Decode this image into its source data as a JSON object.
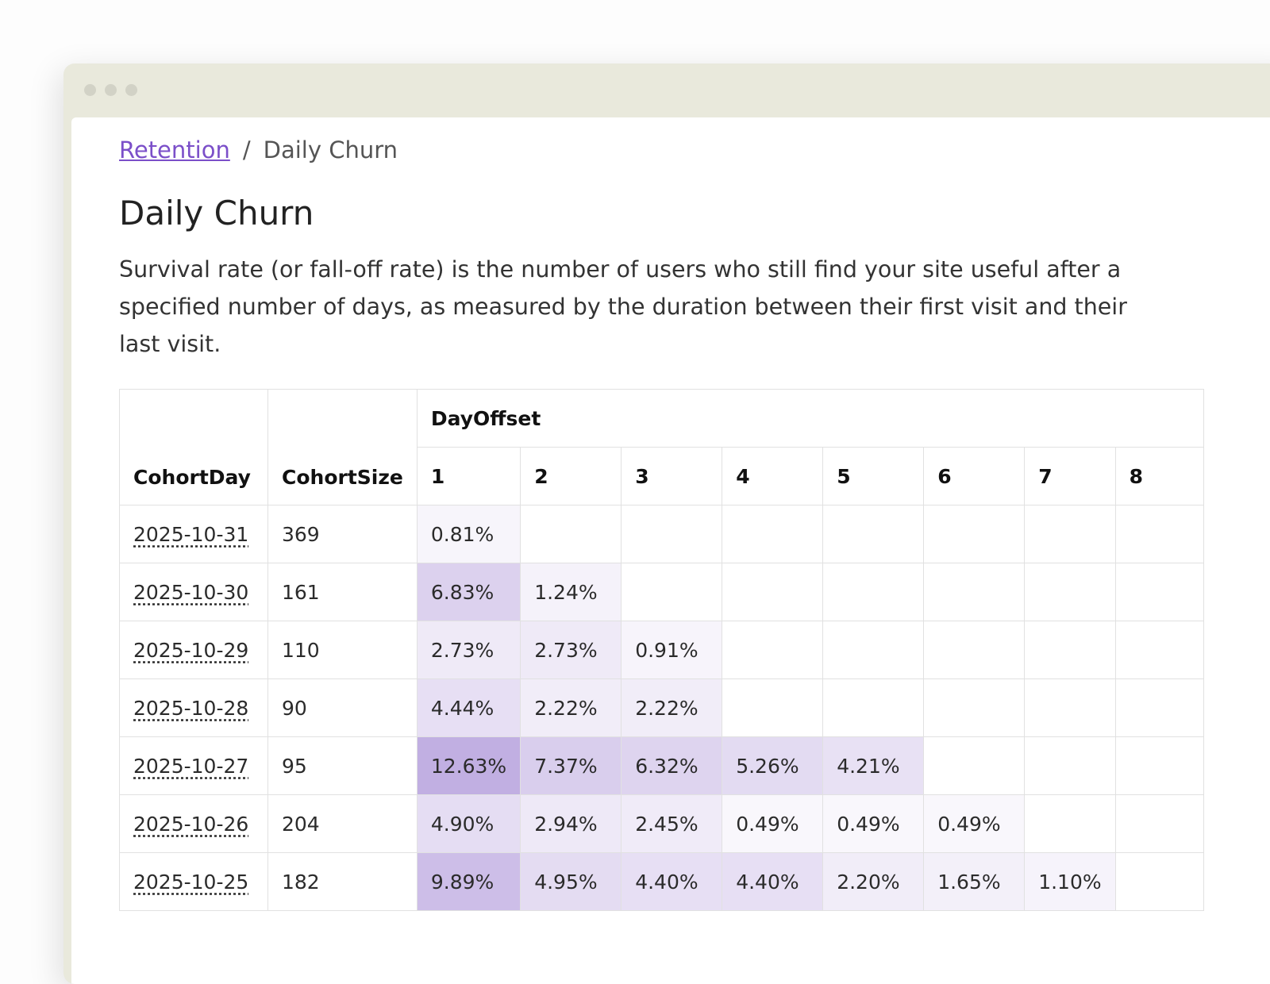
{
  "breadcrumb": {
    "link": "Retention",
    "separator": "/",
    "current": "Daily Churn"
  },
  "title": "Daily Churn",
  "description": "Survival rate (or fall-off rate) is the number of users who still find your site useful after a specified number of days, as measured by the duration between their first visit and their last visit.",
  "table": {
    "group_header": "DayOffset",
    "columns": [
      "CohortDay",
      "CohortSize",
      "1",
      "2",
      "3",
      "4",
      "5",
      "6",
      "7",
      "8"
    ],
    "rows": [
      [
        "2025-10-31",
        "369",
        "0.81%"
      ],
      [
        "2025-10-30",
        "161",
        "6.83%",
        "1.24%"
      ],
      [
        "2025-10-29",
        "110",
        "2.73%",
        "2.73%",
        "0.91%"
      ],
      [
        "2025-10-28",
        "90",
        "4.44%",
        "2.22%",
        "2.22%"
      ],
      [
        "2025-10-27",
        "95",
        "12.63%",
        "7.37%",
        "6.32%",
        "5.26%",
        "4.21%"
      ],
      [
        "2025-10-26",
        "204",
        "4.90%",
        "2.94%",
        "2.45%",
        "0.49%",
        "0.49%",
        "0.49%"
      ],
      [
        "2025-10-25",
        "182",
        "9.89%",
        "4.95%",
        "4.40%",
        "4.40%",
        "2.20%",
        "1.65%",
        "1.10%"
      ]
    ]
  }
}
